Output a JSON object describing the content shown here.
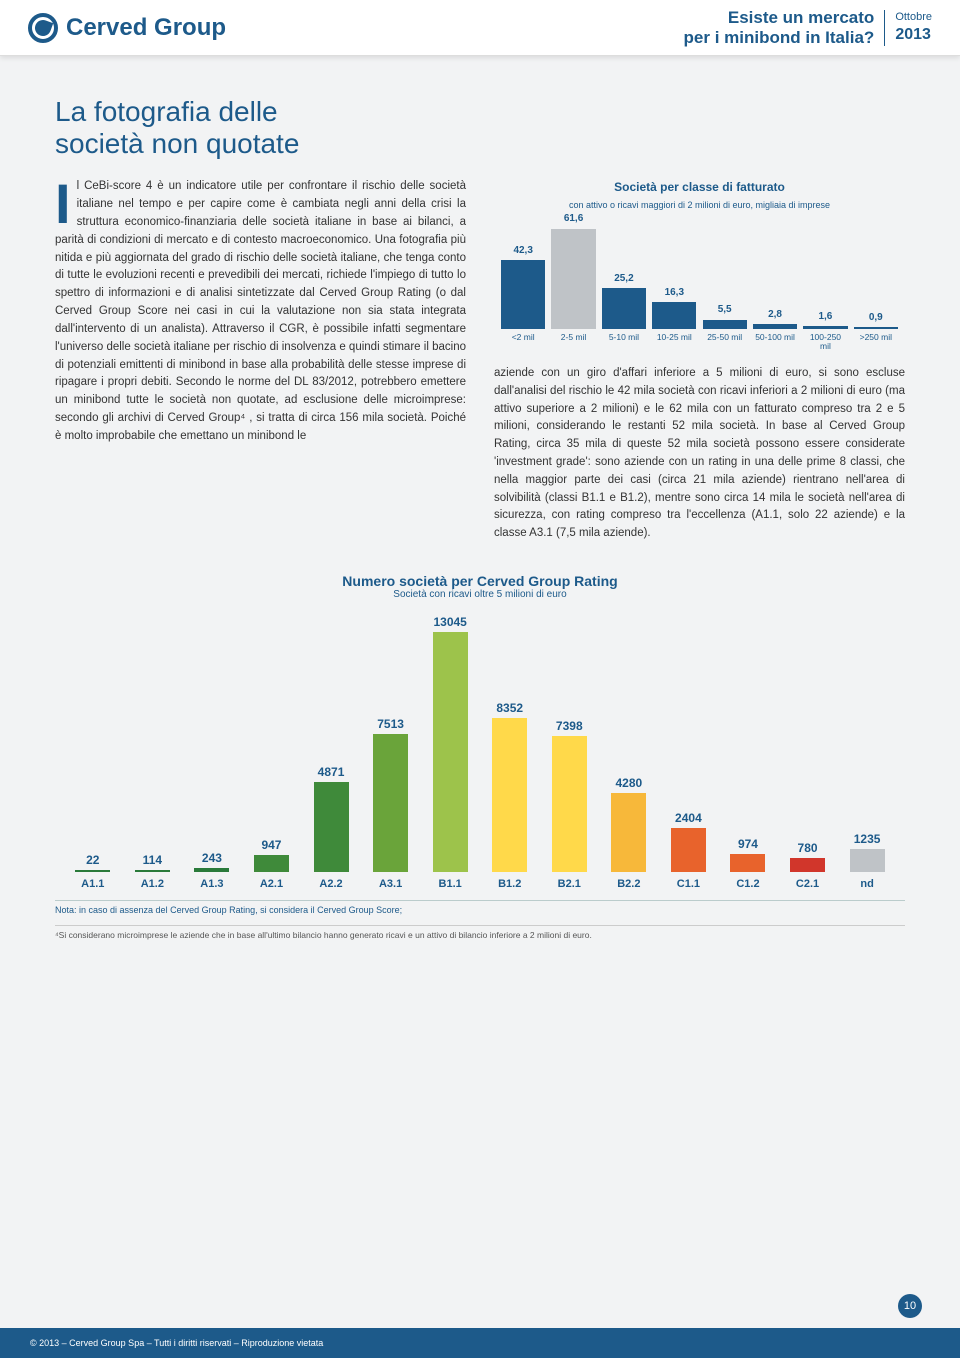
{
  "header": {
    "logo_text": "Cerved Group",
    "title_line1": "Esiste un mercato",
    "title_line2": "per i minibond in Italia?",
    "month": "Ottobre",
    "year": "2013"
  },
  "section_title_line1": "La fotografia delle",
  "section_title_line2": "società non quotate",
  "body_left": "l CeBi-score 4 è un indicatore utile per confrontare il rischio delle società italiane nel tempo e per capire come è cambiata negli anni della crisi la struttura economico-finanziaria delle società italiane in base ai bilanci, a parità di condizioni di mercato e di contesto macroeconomico. Una fotografia più nitida e più aggiornata del grado di rischio delle società italiane, che tenga conto di tutte le evoluzioni recenti e prevedibili dei mercati, richiede l'impiego di tutto lo spettro di informazioni e di analisi sintetizzate dal Cerved Group Rating (o dal Cerved Group Score nei casi in cui la valutazione non sia stata integrata dall'intervento di un analista). Attraverso il CGR, è possibile infatti segmentare l'universo delle società italiane per rischio di insolvenza e quindi stimare il bacino di potenziali emittenti di minibond in base alla probabilità delle stesse imprese di ripagare i propri debiti. Secondo le norme del DL 83/2012, potrebbero emettere un minibond tutte le società non quotate, ad esclusione delle microimprese: secondo gli archivi di Cerved Group⁴ , si tratta di circa 156 mila società. Poiché è molto improbabile che emettano un minibond le",
  "body_right": "aziende con un giro d'affari inferiore a 5 milioni di euro, si sono escluse dall'analisi del rischio le 42 mila società con ricavi inferiori a 2 milioni di euro (ma attivo superiore a 2 milioni) e le 62 mila con un fatturato compreso tra 2 e 5 milioni, considerando le restanti 52 mila società. In base al Cerved Group Rating, circa 35 mila di queste 52 mila società possono essere considerate 'investment grade': sono aziende con un rating in una delle prime 8 classi, che nella maggior parte dei casi (circa 21 mila aziende) rientrano nell'area di solvibilità (classi B1.1 e B1.2), mentre sono circa 14 mila le società nell'area di sicurezza, con rating compreso tra l'eccellenza (A1.1, solo 22 aziende) e la classe A3.1 (7,5 mila aziende).",
  "chart1": {
    "title": "Società per classe di fatturato",
    "subtitle": "con attivo o ricavi maggiori di 2 milioni di euro, migliaia di imprese",
    "max": 61.6,
    "bars": [
      {
        "label": "<2 mil",
        "value": 42.3,
        "color": "#1d5a8a"
      },
      {
        "label": "2-5 mil",
        "value": 61.6,
        "color": "#bfc3c7"
      },
      {
        "label": "5-10 mil",
        "value": 25.2,
        "color": "#1d5a8a"
      },
      {
        "label": "10-25 mil",
        "value": 16.3,
        "color": "#1d5a8a"
      },
      {
        "label": "25-50 mil",
        "value": 5.5,
        "color": "#1d5a8a"
      },
      {
        "label": "50-100 mil",
        "value": 2.8,
        "color": "#1d5a8a"
      },
      {
        "label": "100-250 mil",
        "value": 1.6,
        "color": "#1d5a8a"
      },
      {
        "label": ">250 mil",
        "value": 0.9,
        "color": "#1d5a8a"
      }
    ]
  },
  "chart2": {
    "title": "Numero società per Cerved Group Rating",
    "subtitle": "Società con ricavi oltre 5 milioni di euro",
    "max": 13045,
    "note": "Nota:  in caso di assenza del Cerved Group Rating, si considera il Cerved Group Score;",
    "bars": [
      {
        "label": "A1.1",
        "value": 22,
        "color": "#2a7a3a"
      },
      {
        "label": "A1.2",
        "value": 114,
        "color": "#2a7a3a"
      },
      {
        "label": "A1.3",
        "value": 243,
        "color": "#2a7a3a"
      },
      {
        "label": "A2.1",
        "value": 947,
        "color": "#3f8a3a"
      },
      {
        "label": "A2.2",
        "value": 4871,
        "color": "#3f8a3a"
      },
      {
        "label": "A3.1",
        "value": 7513,
        "color": "#6aa43a"
      },
      {
        "label": "B1.1",
        "value": 13045,
        "color": "#9dc34b"
      },
      {
        "label": "B1.2",
        "value": 8352,
        "color": "#ffd94a"
      },
      {
        "label": "B2.1",
        "value": 7398,
        "color": "#ffd94a"
      },
      {
        "label": "B2.2",
        "value": 4280,
        "color": "#f7b83a"
      },
      {
        "label": "C1.1",
        "value": 2404,
        "color": "#e8632c"
      },
      {
        "label": "C1.2",
        "value": 974,
        "color": "#e8632c"
      },
      {
        "label": "C2.1",
        "value": 780,
        "color": "#d1362b"
      },
      {
        "label": "nd",
        "value": 1235,
        "color": "#bfc3c7"
      }
    ]
  },
  "footnote": "⁴Si considerano microimprese le aziende che in base all'ultimo bilancio hanno generato ricavi e un attivo di bilancio inferiore a 2 milioni di euro.",
  "footer_text": "© 2013 – Cerved Group Spa – Tutti i diritti riservati – Riproduzione vietata",
  "page_number": "10"
}
